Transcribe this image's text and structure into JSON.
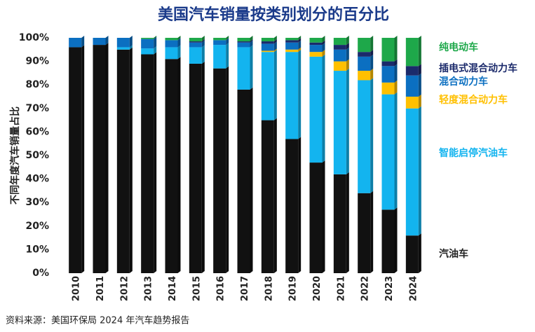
{
  "chart_data": {
    "type": "stacked-bar",
    "title": "美国汽车销量按类别划分的百分比",
    "y_label": "不同年度汽车销量占比",
    "source": "资料来源：美国环保局 2024 年汽车趋势报告",
    "categories": [
      "2010",
      "2011",
      "2012",
      "2013",
      "2014",
      "2015",
      "2016",
      "2017",
      "2018",
      "2019",
      "2020",
      "2021",
      "2022",
      "2023",
      "2024"
    ],
    "series": [
      {
        "name": "汽油车",
        "color": "#111111",
        "values": [
          96,
          97,
          95,
          93,
          91,
          89,
          87,
          78,
          65,
          57,
          47,
          42,
          34,
          27,
          16
        ]
      },
      {
        "name": "智能启停汽油车",
        "color": "#13b4ef",
        "values": [
          0,
          0,
          1,
          2.5,
          5,
          7,
          10,
          18,
          29,
          37,
          45,
          44,
          48,
          49,
          54
        ]
      },
      {
        "name": "轻度混合动力车",
        "color": "#ffc000",
        "values": [
          0,
          0,
          0,
          0,
          0,
          0,
          0,
          0,
          0.5,
          1,
          2,
          4,
          4,
          5,
          5
        ]
      },
      {
        "name": "混合动力车",
        "color": "#0b6fc1",
        "values": [
          4,
          3,
          4,
          4,
          3,
          2,
          2,
          2,
          3,
          3,
          3,
          5,
          6,
          7,
          9
        ]
      },
      {
        "name": "插电式混合动力车",
        "color": "#1b2a6b",
        "values": [
          0,
          0,
          0,
          0,
          0,
          0.5,
          0,
          0.5,
          1,
          1,
          1,
          2,
          2,
          2,
          4
        ]
      },
      {
        "name": "纯电动车",
        "color": "#1ea84a",
        "values": [
          0,
          0,
          0,
          0.5,
          1,
          1.5,
          1,
          1.5,
          1.5,
          1,
          2,
          3,
          6,
          10,
          12
        ]
      }
    ],
    "ylim": [
      0,
      100
    ],
    "yticks": [
      {
        "value": 0,
        "label": "0%"
      },
      {
        "value": 10,
        "label": "10%"
      },
      {
        "value": 20,
        "label": "20%"
      },
      {
        "value": 30,
        "label": "30%"
      },
      {
        "value": 40,
        "label": "40%"
      },
      {
        "value": 50,
        "label": "50%"
      },
      {
        "value": 60,
        "label": "60%"
      },
      {
        "value": 70,
        "label": "70%"
      },
      {
        "value": 80,
        "label": "80%"
      },
      {
        "value": 90,
        "label": "90%"
      },
      {
        "value": 100,
        "label": "100%"
      }
    ]
  }
}
